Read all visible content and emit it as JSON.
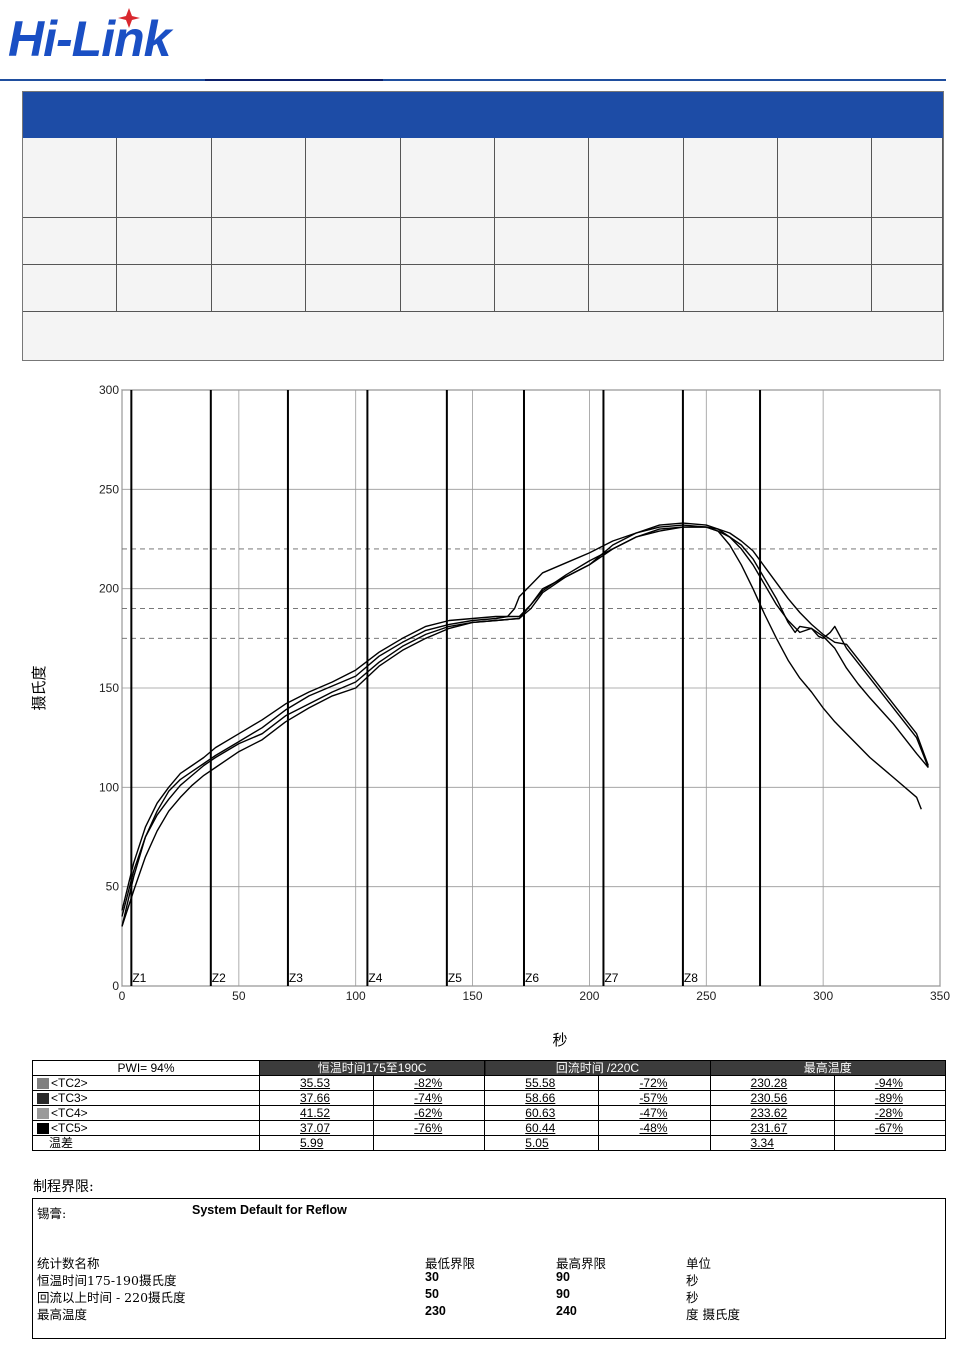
{
  "brand": {
    "logo_text": "Hi-Link",
    "primary_color": "#1d4ca6",
    "logo_color": "#1a4fc4",
    "star_color": "#d9282f"
  },
  "chart_data": {
    "type": "line",
    "xlabel": "秒",
    "ylabel": "摄氏度",
    "xlim": [
      0,
      350
    ],
    "ylim": [
      0,
      300
    ],
    "x_ticks": [
      0,
      50,
      100,
      150,
      200,
      250,
      300,
      350
    ],
    "y_ticks": [
      0,
      50,
      100,
      150,
      200,
      250,
      300
    ],
    "grid": true,
    "zones": [
      {
        "label": "Z1",
        "x": 4
      },
      {
        "label": "Z2",
        "x": 38
      },
      {
        "label": "Z3",
        "x": 71
      },
      {
        "label": "Z4",
        "x": 105
      },
      {
        "label": "Z5",
        "x": 139
      },
      {
        "label": "Z6",
        "x": 172
      },
      {
        "label": "Z7",
        "x": 206
      },
      {
        "label": "Z8",
        "x": 240
      },
      {
        "label": "",
        "x": 273
      }
    ],
    "reference_lines": [
      175,
      190,
      220
    ],
    "series": [
      {
        "x": [
          0,
          5,
          10,
          15,
          20,
          25,
          30,
          35,
          40,
          50,
          60,
          70,
          80,
          90,
          100,
          110,
          120,
          130,
          140,
          150,
          160,
          165,
          168,
          170,
          175,
          180,
          190,
          200,
          210,
          220,
          230,
          240,
          250,
          255,
          260,
          265,
          270,
          275,
          280,
          285,
          288,
          290,
          295,
          300,
          305,
          310,
          315,
          320,
          330,
          340,
          345
        ],
        "y": [
          30,
          55,
          75,
          88,
          98,
          104,
          108,
          112,
          116,
          123,
          130,
          139,
          146,
          151,
          156,
          166,
          173,
          179,
          182,
          184,
          185,
          186,
          190,
          196,
          202,
          208,
          213,
          218,
          224,
          228,
          231,
          232,
          231,
          229,
          226,
          222,
          215,
          205,
          195,
          183,
          178,
          181,
          180,
          176,
          170,
          160,
          152,
          145,
          132,
          117,
          110
        ]
      },
      {
        "x": [
          0,
          5,
          10,
          15,
          20,
          25,
          30,
          35,
          40,
          50,
          60,
          70,
          80,
          90,
          100,
          110,
          120,
          130,
          140,
          150,
          160,
          170,
          175,
          180,
          190,
          200,
          210,
          220,
          230,
          240,
          250,
          255,
          260,
          265,
          270,
          275,
          280,
          285,
          290,
          295,
          298,
          300,
          303,
          305,
          310,
          320,
          330,
          340,
          345
        ],
        "y": [
          30,
          48,
          65,
          78,
          88,
          95,
          101,
          106,
          110,
          118,
          124,
          133,
          140,
          146,
          150,
          161,
          169,
          175,
          180,
          183,
          184,
          185,
          190,
          198,
          206,
          212,
          220,
          226,
          229,
          231,
          231,
          230,
          226,
          220,
          212,
          202,
          192,
          184,
          178,
          180,
          176,
          175,
          178,
          181,
          170,
          155,
          140,
          125,
          110
        ]
      },
      {
        "x": [
          0,
          5,
          10,
          15,
          20,
          25,
          30,
          35,
          40,
          50,
          60,
          70,
          80,
          90,
          100,
          110,
          120,
          130,
          140,
          150,
          160,
          170,
          175,
          180,
          190,
          200,
          210,
          220,
          230,
          240,
          250,
          260,
          265,
          270,
          275,
          280,
          285,
          290,
          295,
          300,
          305,
          310,
          320,
          330,
          340,
          345
        ],
        "y": [
          38,
          62,
          80,
          92,
          100,
          107,
          111,
          115,
          120,
          127,
          134,
          142,
          148,
          153,
          159,
          168,
          175,
          181,
          184,
          185,
          186,
          186,
          192,
          200,
          206,
          212,
          222,
          228,
          232,
          233,
          232,
          228,
          224,
          219,
          211,
          203,
          195,
          188,
          182,
          177,
          173,
          172,
          157,
          142,
          127,
          111
        ]
      },
      {
        "x": [
          0,
          5,
          10,
          15,
          20,
          25,
          30,
          35,
          40,
          50,
          60,
          70,
          80,
          90,
          100,
          110,
          120,
          130,
          140,
          150,
          160,
          170,
          175,
          180,
          190,
          200,
          210,
          220,
          230,
          240,
          250,
          255,
          260,
          265,
          270,
          275,
          280,
          285,
          290,
          295,
          300,
          305,
          310,
          320,
          330,
          340,
          342
        ],
        "y": [
          35,
          58,
          75,
          86,
          94,
          101,
          106,
          111,
          115,
          122,
          127,
          136,
          142,
          148,
          153,
          163,
          171,
          177,
          181,
          183,
          184,
          185,
          192,
          199,
          207,
          214,
          220,
          226,
          230,
          231,
          231,
          229,
          222,
          212,
          200,
          187,
          175,
          164,
          155,
          148,
          140,
          133,
          127,
          115,
          105,
          95,
          89
        ]
      }
    ]
  },
  "results": {
    "header": [
      "PWI= 94%",
      "恒温时间175至190C",
      "回流时间 /220C",
      "最高温度"
    ],
    "rows": [
      {
        "label": "<TC2>",
        "swatch": "#808080",
        "values": [
          "35.53",
          "-82%",
          "55.58",
          "-72%",
          "230.28",
          "-94%"
        ]
      },
      {
        "label": "<TC3>",
        "swatch": "#2b2b2b",
        "values": [
          "37.66",
          "-74%",
          "58.66",
          "-57%",
          "230.56",
          "-89%"
        ]
      },
      {
        "label": "<TC4>",
        "swatch": "#9a9a9a",
        "values": [
          "41.52",
          "-62%",
          "60.63",
          "-47%",
          "233.62",
          "-28%"
        ]
      },
      {
        "label": "<TC5>",
        "swatch": "#000000",
        "values": [
          "37.07",
          "-76%",
          "60.44",
          "-48%",
          "231.67",
          "-67%"
        ]
      }
    ],
    "diff_row": {
      "label": "温差",
      "values": [
        "5.99",
        "",
        "5.05",
        "",
        "3.34",
        ""
      ]
    }
  },
  "limits": {
    "title": "制程界限:",
    "paste_label": "锡膏:",
    "paste_value": "System Default for Reflow",
    "columns": [
      "统计数名称",
      "最低界限",
      "最高界限",
      "单位"
    ],
    "rows": [
      {
        "name": "恒温时间175-190摄氏度",
        "min": "30",
        "max": "90",
        "unit": "秒"
      },
      {
        "name": "回流以上时间 - 220摄氏度",
        "min": "50",
        "max": "90",
        "unit": "秒"
      },
      {
        "name": "最高温度",
        "min": "230",
        "max": "240",
        "unit": "度 摄氏度"
      }
    ]
  }
}
